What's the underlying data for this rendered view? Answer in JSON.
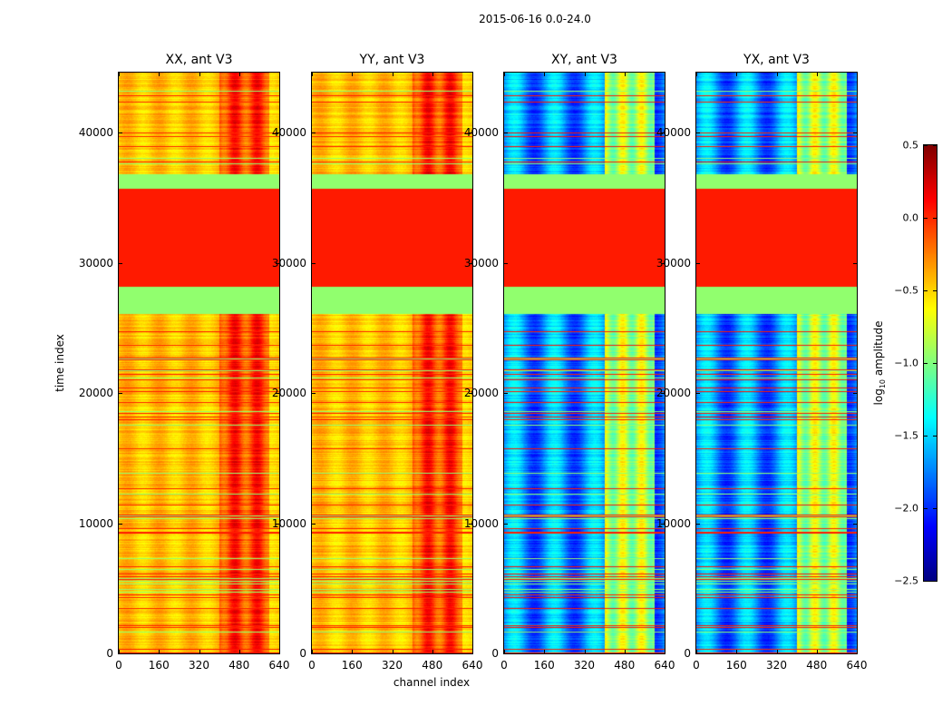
{
  "chart_data": {
    "type": "heatmap",
    "suptitle": "2015-06-16 0.0-24.0",
    "xlabel": "channel index",
    "ylabel": "time index",
    "xlim": [
      0,
      640
    ],
    "ylim": [
      0,
      44600
    ],
    "xticks": [
      "0",
      "160",
      "320",
      "480",
      "640"
    ],
    "xtick_values": [
      0,
      160,
      320,
      480,
      640
    ],
    "yticks": [
      "0",
      "10000",
      "20000",
      "30000",
      "40000"
    ],
    "ytick_values": [
      0,
      10000,
      20000,
      30000,
      40000
    ],
    "colormap": "jet",
    "colorbar": {
      "label_prefix": "log",
      "label_sub": "10",
      "label_suffix": " amplitude",
      "range": [
        -2.5,
        0.5
      ],
      "ticks": [
        "0.5",
        "0.0",
        "−0.5",
        "−1.0",
        "−1.5",
        "−2.0",
        "−2.5"
      ],
      "tick_values": [
        0.5,
        0.0,
        -0.5,
        -1.0,
        -1.5,
        -2.0,
        -2.5
      ]
    },
    "regions": {
      "flagged_flat_value": -0.95,
      "saturated_value": 0.05,
      "saturated_time_range": [
        28200,
        35700
      ],
      "flagged_time_ranges": [
        [
          26100,
          28200
        ],
        [
          35700,
          36800
        ]
      ],
      "rfi_channel_range": [
        400,
        600
      ]
    },
    "panels": [
      {
        "title": "XX, ant V3",
        "kind": "auto",
        "base_value": -0.45,
        "rfi_value": -0.05
      },
      {
        "title": "YY, ant V3",
        "kind": "auto",
        "base_value": -0.45,
        "rfi_value": -0.05
      },
      {
        "title": "XY, ant V3",
        "kind": "cross",
        "base_value": -1.7,
        "rfi_value": -0.85
      },
      {
        "title": "YX, ant V3",
        "kind": "cross",
        "base_value": -1.7,
        "rfi_value": -0.85
      }
    ]
  }
}
